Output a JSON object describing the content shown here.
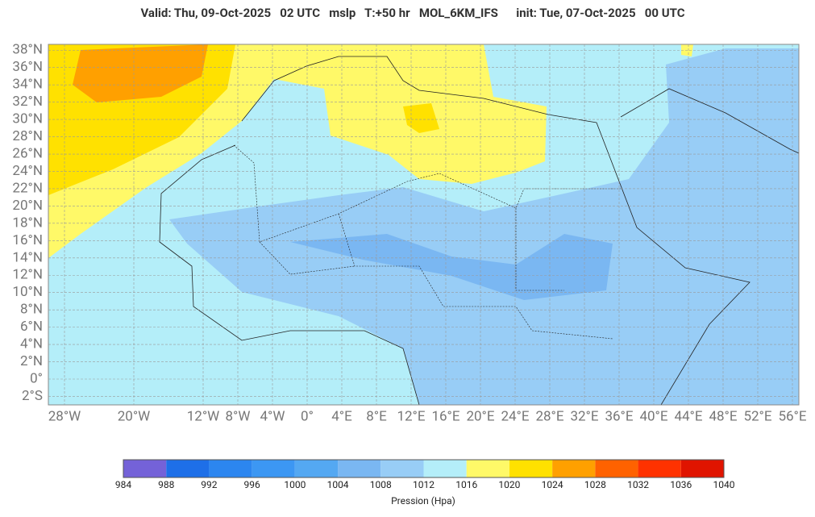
{
  "header": {
    "title": "Valid: Thu, 09-Oct-2025   02 UTC   mslp   T:+50 hr   MOL_6KM_IFS      init: Tue, 07-Oct-2025   00 UTC"
  },
  "map": {
    "lat_ticks": [
      {
        "value": 38,
        "label": "38°N"
      },
      {
        "value": 36,
        "label": "36°N"
      },
      {
        "value": 34,
        "label": "34°N"
      },
      {
        "value": 32,
        "label": "32°N"
      },
      {
        "value": 30,
        "label": "30°N"
      },
      {
        "value": 28,
        "label": "28°N"
      },
      {
        "value": 26,
        "label": "26°N"
      },
      {
        "value": 24,
        "label": "24°N"
      },
      {
        "value": 22,
        "label": "22°N"
      },
      {
        "value": 20,
        "label": "20°N"
      },
      {
        "value": 18,
        "label": "18°N"
      },
      {
        "value": 16,
        "label": "16°N"
      },
      {
        "value": 14,
        "label": "14°N"
      },
      {
        "value": 12,
        "label": "12°N"
      },
      {
        "value": 10,
        "label": "10°N"
      },
      {
        "value": 8,
        "label": "8°N"
      },
      {
        "value": 6,
        "label": "6°N"
      },
      {
        "value": 4,
        "label": "4°N"
      },
      {
        "value": 2,
        "label": "2°N"
      },
      {
        "value": 0,
        "label": "0°"
      },
      {
        "value": -2,
        "label": "2°S"
      }
    ],
    "lon_ticks": [
      {
        "value": -28,
        "label": "28°W"
      },
      {
        "value": -20,
        "label": "20°W"
      },
      {
        "value": -12,
        "label": "12°W"
      },
      {
        "value": -8,
        "label": "8°W"
      },
      {
        "value": -4,
        "label": "4°W"
      },
      {
        "value": 0,
        "label": "0°"
      },
      {
        "value": 4,
        "label": "4°E"
      },
      {
        "value": 8,
        "label": "8°E"
      },
      {
        "value": 12,
        "label": "12°E"
      },
      {
        "value": 16,
        "label": "16°E"
      },
      {
        "value": 20,
        "label": "20°E"
      },
      {
        "value": 24,
        "label": "24°E"
      },
      {
        "value": 28,
        "label": "28°E"
      },
      {
        "value": 32,
        "label": "32°E"
      },
      {
        "value": 36,
        "label": "36°E"
      },
      {
        "value": 40,
        "label": "40°E"
      },
      {
        "value": 44,
        "label": "44°E"
      },
      {
        "value": 48,
        "label": "48°E"
      },
      {
        "value": 52,
        "label": "52°E"
      },
      {
        "value": 56,
        "label": "56°E"
      }
    ]
  },
  "colorbar": {
    "levels": [
      984,
      988,
      992,
      996,
      1000,
      1004,
      1008,
      1012,
      1016,
      1020,
      1024,
      1028,
      1032,
      1036,
      1040
    ],
    "colors": [
      "#7462d8",
      "#1e6fe8",
      "#2c86ef",
      "#3c97f3",
      "#54a8f2",
      "#7ab7f2",
      "#98cdf6",
      "#b4eef9",
      "#fff968",
      "#ffe100",
      "#ffa000",
      "#ff6200",
      "#ff3200",
      "#e01400"
    ],
    "label": "Pression (Hpa)"
  }
}
